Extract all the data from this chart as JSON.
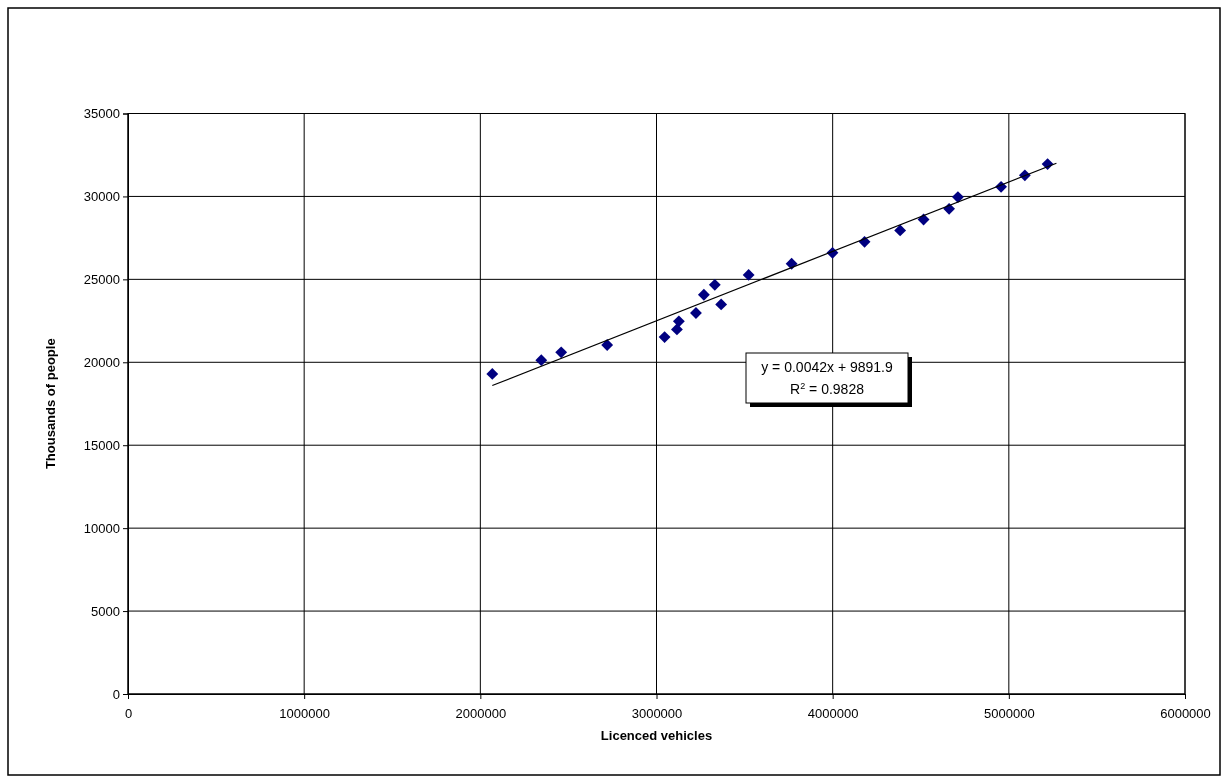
{
  "chart_data": {
    "type": "scatter",
    "xlabel": "Licenced vehicles",
    "ylabel": "Thousands of people",
    "xlim": [
      0,
      6000000
    ],
    "xticks": [
      0,
      1000000,
      2000000,
      3000000,
      4000000,
      5000000,
      6000000
    ],
    "ylim": [
      0,
      35000
    ],
    "yticks": [
      0,
      5000,
      10000,
      15000,
      20000,
      25000,
      30000,
      35000
    ],
    "grid": true,
    "marker": "diamond",
    "series": [
      {
        "color": "#000080",
        "x": [
          2068000,
          2346000,
          2459000,
          2720000,
          3046000,
          3116000,
          3127000,
          3224000,
          3269000,
          3331000,
          3367000,
          3523000,
          3767000,
          3999000,
          4181000,
          4383000,
          4516000,
          4661000,
          4711000,
          4956000,
          5091000,
          5220000
        ],
        "values": [
          19300,
          20130,
          20600,
          21040,
          21520,
          21980,
          22470,
          22970,
          24070,
          24670,
          23490,
          25270,
          25940,
          26600,
          27260,
          27950,
          28610,
          29250,
          29960,
          30580,
          31270,
          31950
        ]
      },
      {
        "type": "line",
        "color": "#000000",
        "marker": "none",
        "line_style": "solid",
        "x": [
          2068000,
          5270000
        ],
        "values": [
          18600,
          32000
        ]
      }
    ],
    "annotations": [
      "y = 0.0042x + 9891.9",
      "R$^{2}$ = 0.9828"
    ]
  }
}
